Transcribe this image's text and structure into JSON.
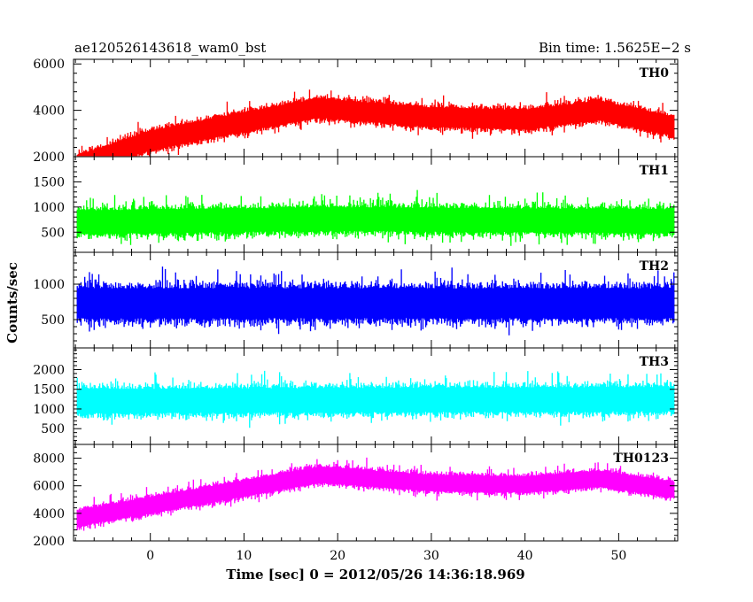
{
  "header": {
    "left": "ae120526143618_wam0_bst",
    "right": "Bin time: 1.5625E−2 s"
  },
  "chart_data": {
    "type": "line",
    "xlabel": "Time [sec] 0 = 2012/05/26 14:36:18.969",
    "ylabel": "Counts/sec",
    "xlim": [
      -8.2,
      56.3
    ],
    "x_ticks": [
      "0",
      "10",
      "20",
      "30",
      "40",
      "50"
    ],
    "x_tick_values": [
      0,
      10,
      20,
      30,
      40,
      50
    ],
    "bin_time_s": 0.015625,
    "panels": [
      {
        "name": "TH0",
        "color": "#ff0000",
        "ylim": [
          2000,
          6200
        ],
        "y_ticks": [
          "2000",
          "4000",
          "6000"
        ],
        "y_tick_values": [
          2000,
          4000,
          6000
        ],
        "trend": [
          [
            -8,
            1600
          ],
          [
            0,
            2700
          ],
          [
            10,
            3500
          ],
          [
            18,
            4100
          ],
          [
            30,
            3700
          ],
          [
            40,
            3600
          ],
          [
            48,
            4000
          ],
          [
            56,
            3300
          ]
        ],
        "spread": 750
      },
      {
        "name": "TH1",
        "color": "#00ff00",
        "ylim": [
          100,
          2000
        ],
        "y_ticks": [
          "500",
          "1000",
          "1500"
        ],
        "y_tick_values": [
          500,
          1000,
          1500
        ],
        "trend": [
          [
            -8,
            700
          ],
          [
            20,
            760
          ],
          [
            56,
            720
          ]
        ],
        "spread": 420
      },
      {
        "name": "TH2",
        "color": "#0000ff",
        "ylim": [
          100,
          1450
        ],
        "y_ticks": [
          "500",
          "1000"
        ],
        "y_tick_values": [
          500,
          1000
        ],
        "trend": [
          [
            -8,
            730
          ],
          [
            56,
            730
          ]
        ],
        "spread": 380
      },
      {
        "name": "TH3",
        "color": "#00ffff",
        "ylim": [
          100,
          2550
        ],
        "y_ticks": [
          "500",
          "1000",
          "1500",
          "2000"
        ],
        "y_tick_values": [
          500,
          1000,
          1500,
          2000
        ],
        "trend": [
          [
            -8,
            1200
          ],
          [
            56,
            1250
          ]
        ],
        "spread": 550
      },
      {
        "name": "TH0123",
        "color": "#ff00ff",
        "ylim": [
          2000,
          9000
        ],
        "y_ticks": [
          "2000",
          "4000",
          "6000",
          "8000"
        ],
        "y_tick_values": [
          2000,
          4000,
          6000,
          8000
        ],
        "trend": [
          [
            -8,
            3600
          ],
          [
            0,
            4600
          ],
          [
            10,
            5800
          ],
          [
            18,
            6800
          ],
          [
            30,
            6200
          ],
          [
            40,
            6100
          ],
          [
            48,
            6500
          ],
          [
            56,
            5700
          ]
        ],
        "spread": 1050
      }
    ]
  }
}
